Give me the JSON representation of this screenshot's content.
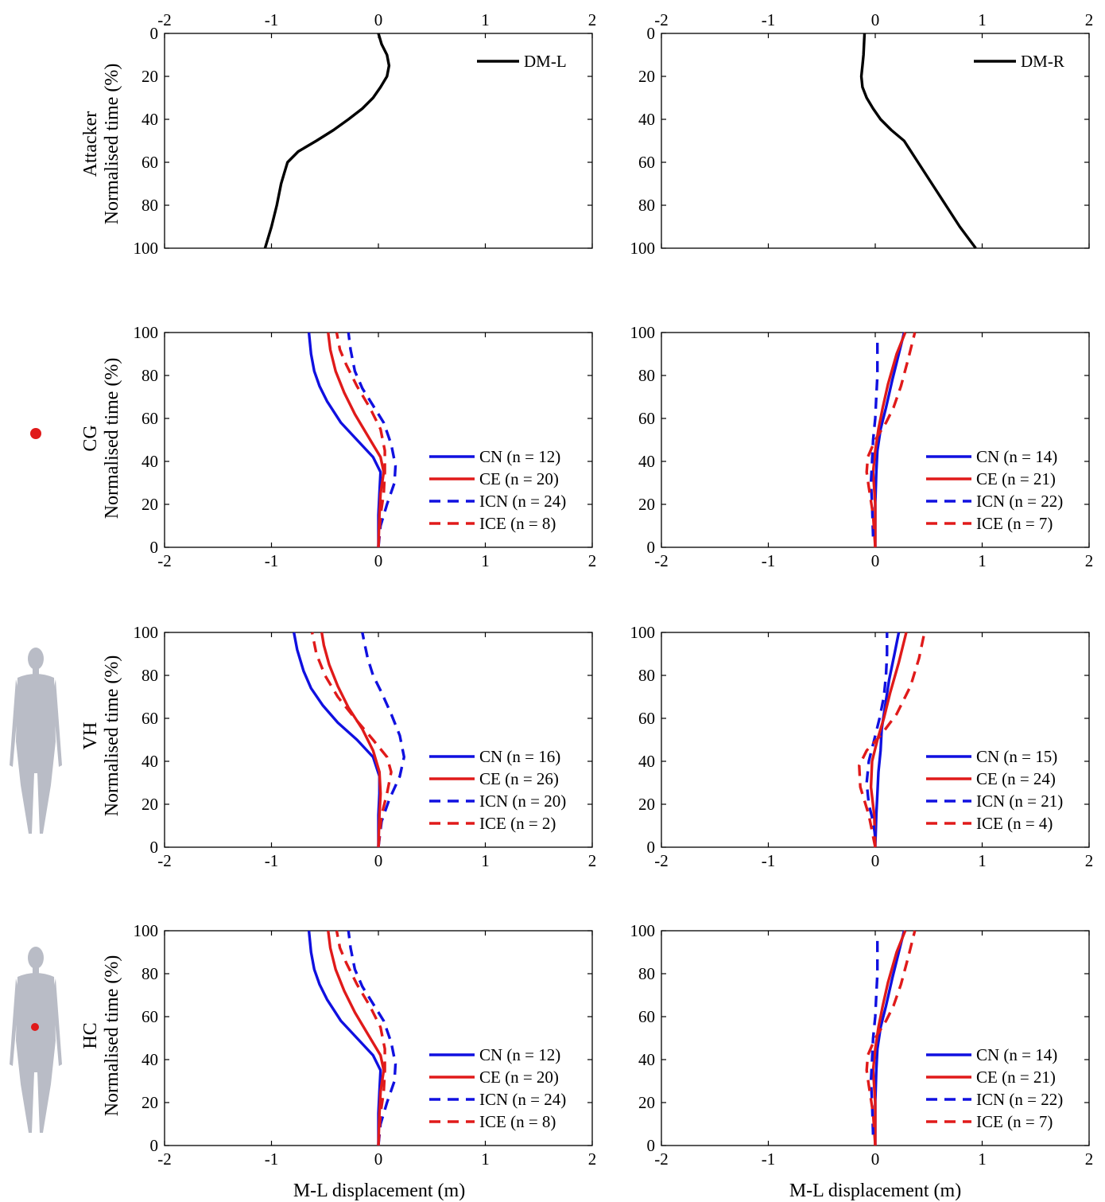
{
  "figure": {
    "xlabel": "M-L displacement (m)",
    "ylabel": "Normalised time (%)",
    "xticks": [
      "-2",
      "-1",
      "0",
      "1",
      "2"
    ],
    "yticks": [
      "0",
      "20",
      "40",
      "60",
      "80",
      "100"
    ],
    "xlim": [
      -2,
      2
    ],
    "ylim": [
      0,
      100
    ],
    "row_labels": [
      "Attacker",
      "CG",
      "VH",
      "HC"
    ],
    "row_icons": [
      "red-dot-marker",
      "humanoid-figure",
      "humanoid-figure-with-red-dot"
    ],
    "colors": {
      "blue": "#1010e0",
      "red": "#e01a1a",
      "black": "#000000",
      "marker": "#e01a1a",
      "mannequin": "#b9bcc6"
    }
  },
  "chart_data": [
    {
      "id": "attacker-left",
      "type": "line",
      "row": 0,
      "col": 0,
      "x_axis_position": "top",
      "y_reversed": true,
      "xlim": [
        -2,
        2
      ],
      "ylim": [
        0,
        100
      ],
      "series": [
        {
          "name": "DM-L",
          "color": "#000000",
          "dash": "solid",
          "x": [
            0,
            0.03,
            0.08,
            0.1,
            0.08,
            0.02,
            -0.05,
            -0.15,
            -0.28,
            -0.42,
            -0.58,
            -0.75,
            -0.85,
            -0.88,
            -0.91,
            -0.95,
            -1.0,
            -1.06
          ],
          "y": [
            0,
            5,
            10,
            15,
            20,
            25,
            30,
            35,
            40,
            45,
            50,
            55,
            60,
            65,
            70,
            80,
            90,
            100
          ]
        }
      ]
    },
    {
      "id": "attacker-right",
      "type": "line",
      "row": 0,
      "col": 1,
      "x_axis_position": "top",
      "y_reversed": true,
      "xlim": [
        -2,
        2
      ],
      "ylim": [
        0,
        100
      ],
      "series": [
        {
          "name": "DM-R",
          "color": "#000000",
          "dash": "solid",
          "x": [
            -0.1,
            -0.11,
            -0.12,
            -0.13,
            -0.12,
            -0.08,
            -0.02,
            0.05,
            0.15,
            0.27,
            0.4,
            0.53,
            0.66,
            0.79,
            0.94
          ],
          "y": [
            0,
            10,
            15,
            20,
            25,
            30,
            35,
            40,
            45,
            50,
            60,
            70,
            80,
            90,
            100
          ]
        }
      ]
    },
    {
      "id": "cg-left",
      "type": "line",
      "row": 1,
      "col": 0,
      "x_axis_position": "bottom",
      "y_reversed": false,
      "xlim": [
        -2,
        2
      ],
      "ylim": [
        0,
        100
      ],
      "series": [
        {
          "name": "CN (n = 12)",
          "color": "#1010e0",
          "dash": "solid",
          "x": [
            0,
            0,
            0.01,
            0.02,
            -0.05,
            -0.2,
            -0.35,
            -0.48,
            -0.55,
            -0.6,
            -0.63,
            -0.65
          ],
          "y": [
            0,
            15,
            25,
            35,
            42,
            50,
            58,
            68,
            75,
            82,
            90,
            100
          ]
        },
        {
          "name": "CE (n = 20)",
          "color": "#e01a1a",
          "dash": "solid",
          "x": [
            0,
            0.01,
            0.02,
            0.05,
            0.02,
            -0.1,
            -0.22,
            -0.32,
            -0.4,
            -0.45,
            -0.47
          ],
          "y": [
            0,
            15,
            25,
            35,
            42,
            52,
            62,
            72,
            82,
            92,
            100
          ]
        },
        {
          "name": "ICN (n = 24)",
          "color": "#1010e0",
          "dash": "dash",
          "x": [
            0,
            0.02,
            0.08,
            0.15,
            0.16,
            0.12,
            0.05,
            -0.05,
            -0.15,
            -0.22,
            -0.26,
            -0.28
          ],
          "y": [
            0,
            10,
            20,
            30,
            38,
            48,
            58,
            66,
            74,
            82,
            92,
            100
          ]
        },
        {
          "name": "ICE (n = 8)",
          "color": "#e01a1a",
          "dash": "dash",
          "x": [
            0,
            0.02,
            0.05,
            0.06,
            0.06,
            0.02,
            -0.08,
            -0.2,
            -0.3,
            -0.36,
            -0.39
          ],
          "y": [
            0,
            15,
            25,
            35,
            45,
            55,
            65,
            75,
            85,
            92,
            100
          ]
        }
      ]
    },
    {
      "id": "cg-right",
      "type": "line",
      "row": 1,
      "col": 1,
      "x_axis_position": "bottom",
      "y_reversed": false,
      "xlim": [
        -2,
        2
      ],
      "ylim": [
        0,
        100
      ],
      "series": [
        {
          "name": "CN (n = 14)",
          "color": "#1010e0",
          "dash": "solid",
          "x": [
            0,
            0,
            0.01,
            0.02,
            0.05,
            0.1,
            0.16,
            0.22,
            0.27
          ],
          "y": [
            0,
            20,
            35,
            45,
            55,
            65,
            78,
            90,
            100
          ]
        },
        {
          "name": "CE (n = 21)",
          "color": "#e01a1a",
          "dash": "solid",
          "x": [
            0,
            0,
            -0.02,
            0,
            0.03,
            0.07,
            0.12,
            0.2,
            0.28
          ],
          "y": [
            0,
            20,
            35,
            45,
            55,
            65,
            76,
            90,
            100
          ]
        },
        {
          "name": "ICN (n = 22)",
          "color": "#1010e0",
          "dash": "dash",
          "x": [
            -0.02,
            -0.03,
            -0.04,
            -0.03,
            -0.02,
            0,
            0.01,
            0.02,
            0.02,
            0.02
          ],
          "y": [
            5,
            20,
            30,
            40,
            50,
            60,
            70,
            80,
            90,
            97
          ]
        },
        {
          "name": "ICE (n = 7)",
          "color": "#e01a1a",
          "dash": "dash",
          "x": [
            0,
            -0.02,
            -0.06,
            -0.08,
            -0.07,
            0,
            0.1,
            0.17,
            0.24,
            0.31,
            0.37
          ],
          "y": [
            0,
            15,
            28,
            35,
            42,
            50,
            58,
            65,
            75,
            88,
            100
          ]
        }
      ]
    },
    {
      "id": "vh-left",
      "type": "line",
      "row": 2,
      "col": 0,
      "x_axis_position": "bottom",
      "y_reversed": false,
      "xlim": [
        -2,
        2
      ],
      "ylim": [
        0,
        100
      ],
      "series": [
        {
          "name": "CN (n = 16)",
          "color": "#1010e0",
          "dash": "solid",
          "x": [
            0,
            0,
            0.01,
            0.01,
            -0.05,
            -0.2,
            -0.38,
            -0.52,
            -0.63,
            -0.7,
            -0.76,
            -0.79
          ],
          "y": [
            0,
            15,
            25,
            33,
            42,
            50,
            58,
            66,
            74,
            82,
            92,
            100
          ]
        },
        {
          "name": "CE (n = 26)",
          "color": "#e01a1a",
          "dash": "solid",
          "x": [
            0,
            0.01,
            0.02,
            0.01,
            -0.05,
            -0.15,
            -0.28,
            -0.38,
            -0.46,
            -0.51,
            -0.53
          ],
          "y": [
            0,
            15,
            25,
            35,
            45,
            55,
            65,
            75,
            85,
            94,
            100
          ]
        },
        {
          "name": "ICN (n = 20)",
          "color": "#1010e0",
          "dash": "dash",
          "x": [
            0,
            0.03,
            0.1,
            0.2,
            0.24,
            0.2,
            0.12,
            0.03,
            -0.05,
            -0.1,
            -0.13,
            -0.15
          ],
          "y": [
            0,
            12,
            22,
            33,
            42,
            52,
            62,
            72,
            80,
            88,
            95,
            100
          ]
        },
        {
          "name": "ICE (n = 2)",
          "color": "#e01a1a",
          "dash": "dash",
          "x": [
            0,
            0.03,
            0.08,
            0.12,
            0.08,
            -0.05,
            -0.22,
            -0.38,
            -0.5,
            -0.58,
            -0.62
          ],
          "y": [
            0,
            15,
            25,
            35,
            42,
            50,
            60,
            70,
            80,
            90,
            100
          ]
        }
      ]
    },
    {
      "id": "vh-right",
      "type": "line",
      "row": 2,
      "col": 1,
      "x_axis_position": "bottom",
      "y_reversed": false,
      "xlim": [
        -2,
        2
      ],
      "ylim": [
        0,
        100
      ],
      "series": [
        {
          "name": "CN (n = 15)",
          "color": "#1010e0",
          "dash": "solid",
          "x": [
            0,
            0.01,
            0.02,
            0.03,
            0.05,
            0.06,
            0.09,
            0.13,
            0.18,
            0.22
          ],
          "y": [
            0,
            15,
            25,
            35,
            45,
            55,
            65,
            78,
            90,
            100
          ]
        },
        {
          "name": "CE (n = 24)",
          "color": "#e01a1a",
          "dash": "solid",
          "x": [
            0,
            -0.01,
            -0.04,
            -0.03,
            0.02,
            0.08,
            0.14,
            0.22,
            0.29
          ],
          "y": [
            0,
            15,
            28,
            40,
            50,
            60,
            72,
            86,
            100
          ]
        },
        {
          "name": "ICN (n = 21)",
          "color": "#1010e0",
          "dash": "dash",
          "x": [
            0,
            -0.02,
            -0.06,
            -0.08,
            -0.06,
            -0.01,
            0.04,
            0.08,
            0.1,
            0.11,
            0.11
          ],
          "y": [
            5,
            12,
            20,
            30,
            40,
            50,
            60,
            70,
            80,
            90,
            100
          ]
        },
        {
          "name": "ICE (n = 4)",
          "color": "#e01a1a",
          "dash": "dash",
          "x": [
            0,
            -0.06,
            -0.14,
            -0.15,
            -0.08,
            0.05,
            0.2,
            0.33,
            0.41,
            0.46
          ],
          "y": [
            0,
            15,
            28,
            38,
            45,
            52,
            62,
            75,
            88,
            100
          ]
        }
      ]
    },
    {
      "id": "hc-left",
      "type": "line",
      "row": 3,
      "col": 0,
      "x_axis_position": "bottom",
      "y_reversed": false,
      "xlim": [
        -2,
        2
      ],
      "ylim": [
        0,
        100
      ],
      "series": [
        {
          "name": "CN (n = 12)",
          "color": "#1010e0",
          "dash": "solid",
          "x": [
            0,
            0,
            0.01,
            0.02,
            -0.05,
            -0.2,
            -0.35,
            -0.48,
            -0.55,
            -0.6,
            -0.63,
            -0.65
          ],
          "y": [
            0,
            15,
            25,
            35,
            42,
            50,
            58,
            68,
            75,
            82,
            90,
            100
          ]
        },
        {
          "name": "CE (n = 20)",
          "color": "#e01a1a",
          "dash": "solid",
          "x": [
            0,
            0.01,
            0.02,
            0.05,
            0.02,
            -0.1,
            -0.22,
            -0.32,
            -0.4,
            -0.45,
            -0.47
          ],
          "y": [
            0,
            15,
            25,
            35,
            42,
            52,
            62,
            72,
            82,
            92,
            100
          ]
        },
        {
          "name": "ICN (n = 24)",
          "color": "#1010e0",
          "dash": "dash",
          "x": [
            0,
            0.02,
            0.08,
            0.15,
            0.16,
            0.12,
            0.05,
            -0.05,
            -0.15,
            -0.22,
            -0.26,
            -0.28
          ],
          "y": [
            0,
            10,
            20,
            30,
            38,
            48,
            58,
            66,
            74,
            82,
            92,
            100
          ]
        },
        {
          "name": "ICE (n = 8)",
          "color": "#e01a1a",
          "dash": "dash",
          "x": [
            0,
            0.02,
            0.05,
            0.06,
            0.06,
            0.02,
            -0.08,
            -0.2,
            -0.3,
            -0.36,
            -0.39
          ],
          "y": [
            0,
            15,
            25,
            35,
            45,
            55,
            65,
            75,
            85,
            92,
            100
          ]
        }
      ]
    },
    {
      "id": "hc-right",
      "type": "line",
      "row": 3,
      "col": 1,
      "x_axis_position": "bottom",
      "y_reversed": false,
      "xlim": [
        -2,
        2
      ],
      "ylim": [
        0,
        100
      ],
      "series": [
        {
          "name": "CN (n = 14)",
          "color": "#1010e0",
          "dash": "solid",
          "x": [
            0,
            0,
            0.01,
            0.02,
            0.05,
            0.1,
            0.16,
            0.22,
            0.27
          ],
          "y": [
            0,
            20,
            35,
            45,
            55,
            65,
            78,
            90,
            100
          ]
        },
        {
          "name": "CE (n = 21)",
          "color": "#e01a1a",
          "dash": "solid",
          "x": [
            0,
            0,
            -0.02,
            0,
            0.03,
            0.07,
            0.12,
            0.2,
            0.28
          ],
          "y": [
            0,
            20,
            35,
            45,
            55,
            65,
            76,
            90,
            100
          ]
        },
        {
          "name": "ICN (n = 22)",
          "color": "#1010e0",
          "dash": "dash",
          "x": [
            -0.02,
            -0.03,
            -0.04,
            -0.03,
            -0.02,
            0,
            0.01,
            0.02,
            0.02,
            0.02
          ],
          "y": [
            5,
            20,
            30,
            40,
            50,
            60,
            70,
            80,
            90,
            97
          ]
        },
        {
          "name": "ICE (n = 7)",
          "color": "#e01a1a",
          "dash": "dash",
          "x": [
            0,
            -0.02,
            -0.06,
            -0.08,
            -0.07,
            0,
            0.1,
            0.17,
            0.24,
            0.31,
            0.37
          ],
          "y": [
            0,
            15,
            28,
            35,
            42,
            50,
            58,
            65,
            75,
            88,
            100
          ]
        }
      ]
    }
  ]
}
